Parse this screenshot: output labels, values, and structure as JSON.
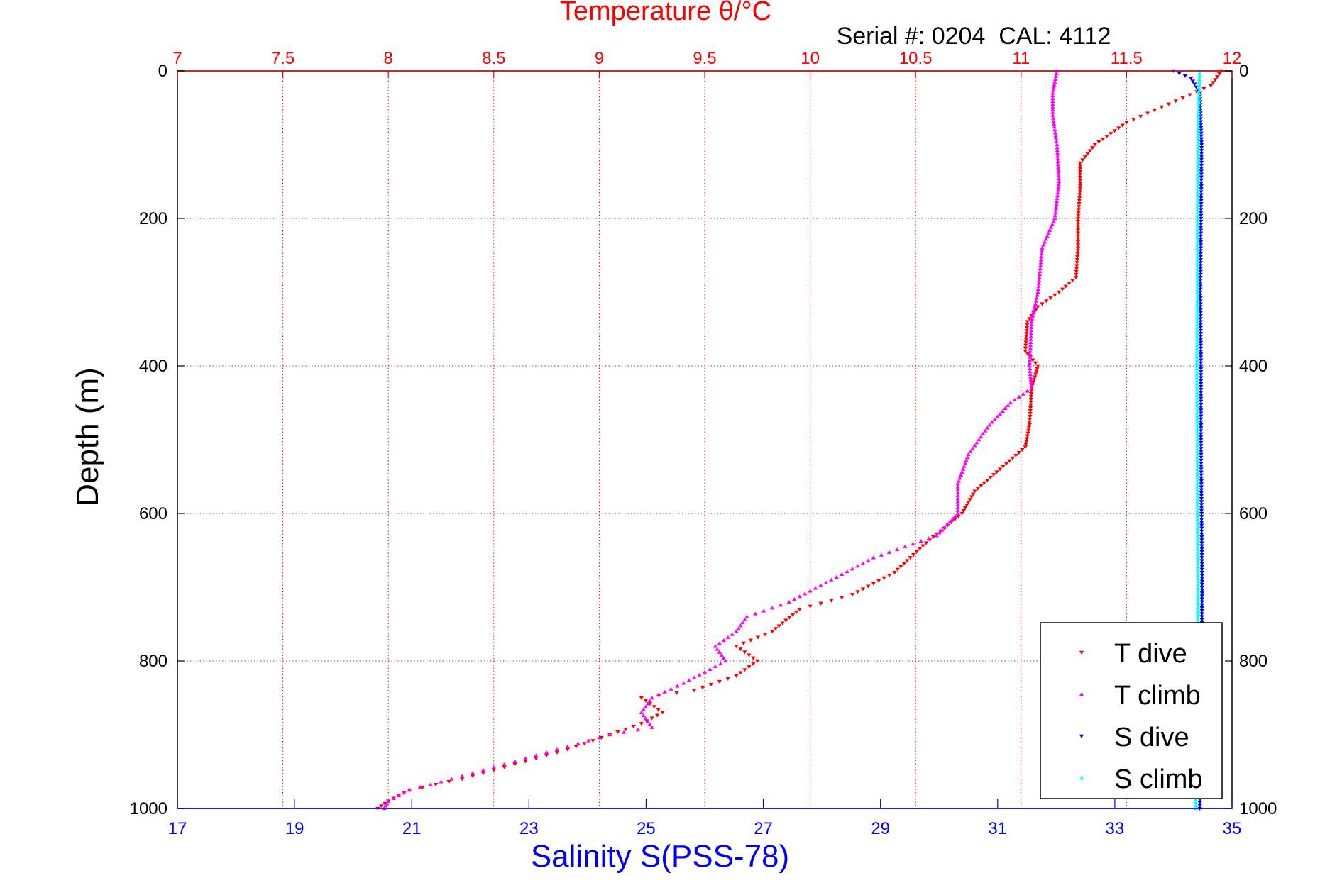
{
  "chart_data": {
    "type": "scatter",
    "title": "Temperature θ/°C",
    "subtitle": "Serial #: 0204  CAL: 4112",
    "ylabel": "Depth (m)",
    "xlabel_bottom": "Salinity S(PSS-78)",
    "y_reversed": true,
    "ylim": [
      0,
      1000
    ],
    "y_ticks": [
      0,
      200,
      400,
      600,
      800,
      1000
    ],
    "x_top": {
      "label": "Temperature θ/°C",
      "lim": [
        7,
        12
      ],
      "ticks": [
        7,
        7.5,
        8,
        8.5,
        9,
        9.5,
        10,
        10.5,
        11,
        11.5,
        12
      ]
    },
    "x_bottom": {
      "label": "Salinity S(PSS-78)",
      "lim": [
        17,
        35
      ],
      "ticks": [
        17,
        19,
        21,
        23,
        25,
        27,
        29,
        31,
        33,
        35
      ]
    },
    "grid": true,
    "legend_position": "bottom-right",
    "colors": {
      "t_dive": "#ff0000",
      "t_climb": "#ff00ff",
      "s_dive": "#0000ff",
      "s_climb": "#00ffff",
      "temp_axis": "#ff0000",
      "sal_axis": "#0000ff"
    },
    "series": [
      {
        "name": "T dive",
        "axis": "temperature",
        "color": "#ff0000",
        "points": [
          [
            11.95,
            0
          ],
          [
            11.9,
            20
          ],
          [
            11.7,
            45
          ],
          [
            11.5,
            70
          ],
          [
            11.35,
            100
          ],
          [
            11.28,
            125
          ],
          [
            11.28,
            160
          ],
          [
            11.27,
            200
          ],
          [
            11.27,
            240
          ],
          [
            11.26,
            280
          ],
          [
            11.18,
            300
          ],
          [
            11.08,
            320
          ],
          [
            11.03,
            340
          ],
          [
            11.02,
            380
          ],
          [
            11.08,
            400
          ],
          [
            11.05,
            430
          ],
          [
            11.04,
            480
          ],
          [
            11.02,
            510
          ],
          [
            10.9,
            540
          ],
          [
            10.78,
            570
          ],
          [
            10.72,
            600
          ],
          [
            10.55,
            640
          ],
          [
            10.4,
            680
          ],
          [
            10.2,
            710
          ],
          [
            9.95,
            730
          ],
          [
            9.82,
            760
          ],
          [
            9.65,
            780
          ],
          [
            9.75,
            800
          ],
          [
            9.65,
            820
          ],
          [
            9.45,
            840
          ],
          [
            9.2,
            850
          ],
          [
            9.3,
            870
          ],
          [
            9.2,
            885
          ],
          [
            9.05,
            900
          ],
          [
            8.85,
            920
          ],
          [
            8.6,
            940
          ],
          [
            8.35,
            960
          ],
          [
            8.1,
            975
          ],
          [
            8.0,
            990
          ],
          [
            7.95,
            1000
          ]
        ]
      },
      {
        "name": "T climb",
        "axis": "temperature",
        "color": "#ff00ff",
        "points": [
          [
            11.17,
            0
          ],
          [
            11.15,
            30
          ],
          [
            11.15,
            60
          ],
          [
            11.17,
            100
          ],
          [
            11.18,
            150
          ],
          [
            11.16,
            200
          ],
          [
            11.1,
            240
          ],
          [
            11.08,
            300
          ],
          [
            11.05,
            340
          ],
          [
            11.04,
            400
          ],
          [
            11.05,
            430
          ],
          [
            10.95,
            450
          ],
          [
            10.85,
            480
          ],
          [
            10.75,
            520
          ],
          [
            10.7,
            560
          ],
          [
            10.7,
            600
          ],
          [
            10.6,
            630
          ],
          [
            10.3,
            660
          ],
          [
            10.1,
            690
          ],
          [
            9.9,
            720
          ],
          [
            9.7,
            740
          ],
          [
            9.65,
            760
          ],
          [
            9.55,
            780
          ],
          [
            9.6,
            800
          ],
          [
            9.4,
            830
          ],
          [
            9.25,
            850
          ],
          [
            9.2,
            870
          ],
          [
            9.25,
            890
          ],
          [
            9.05,
            900
          ],
          [
            8.8,
            920
          ],
          [
            8.55,
            940
          ],
          [
            8.3,
            960
          ],
          [
            8.1,
            975
          ],
          [
            8.0,
            990
          ],
          [
            7.98,
            1000
          ]
        ]
      },
      {
        "name": "S dive",
        "axis": "salinity",
        "color": "#0000ff",
        "points": [
          [
            34.0,
            0
          ],
          [
            34.3,
            10
          ],
          [
            34.45,
            30
          ],
          [
            34.48,
            100
          ],
          [
            34.47,
            200
          ],
          [
            34.46,
            300
          ],
          [
            34.47,
            400
          ],
          [
            34.47,
            500
          ],
          [
            34.48,
            600
          ],
          [
            34.49,
            700
          ],
          [
            34.48,
            800
          ],
          [
            34.47,
            900
          ],
          [
            34.45,
            1000
          ]
        ]
      },
      {
        "name": "S climb",
        "axis": "salinity",
        "color": "#00ffff",
        "points": [
          [
            34.45,
            0
          ],
          [
            34.43,
            50
          ],
          [
            34.42,
            100
          ],
          [
            34.41,
            200
          ],
          [
            34.41,
            300
          ],
          [
            34.4,
            400
          ],
          [
            34.41,
            500
          ],
          [
            34.41,
            600
          ],
          [
            34.42,
            700
          ],
          [
            34.41,
            800
          ],
          [
            34.4,
            900
          ],
          [
            34.38,
            1000
          ]
        ]
      }
    ],
    "legend": [
      {
        "label": "T dive",
        "color": "#ff0000",
        "marker": "down"
      },
      {
        "label": "T climb",
        "color": "#ff00ff",
        "marker": "up"
      },
      {
        "label": "S dive",
        "color": "#0000ff",
        "marker": "down"
      },
      {
        "label": "S climb",
        "color": "#00ffff",
        "marker": "up"
      }
    ]
  }
}
